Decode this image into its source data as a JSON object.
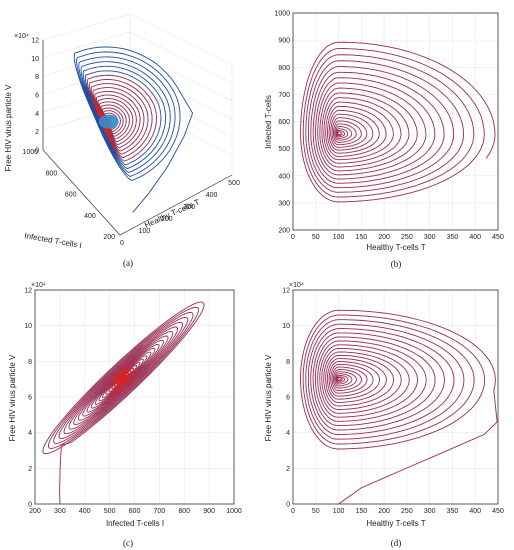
{
  "chart_data": [
    {
      "panel": "a",
      "caption": "(a)",
      "type": "line",
      "projection": "3d",
      "xlabel": "Healthy T-cells T",
      "ylabel": "Infected T-cells I",
      "zlabel": "Free HIV virus particle V",
      "z_exponent": "×10⁴",
      "xticks": [
        "0",
        "100",
        "200",
        "300",
        "400",
        "500"
      ],
      "yticks": [
        "200",
        "400",
        "600",
        "800",
        "1000"
      ],
      "zticks": [
        "0",
        "2",
        "4",
        "6",
        "8",
        "10",
        "12"
      ],
      "xlim": [
        0,
        500
      ],
      "ylim": [
        200,
        1000
      ],
      "zlim": [
        0,
        12
      ],
      "series": [
        {
          "color": "#1f4fa0"
        },
        {
          "color": "#e0201e"
        }
      ],
      "equilibrium": {
        "T": 100,
        "I": 550,
        "V": 7.0
      }
    },
    {
      "panel": "b",
      "caption": "(b)",
      "type": "line",
      "xlabel": "Healthy T-cells T",
      "ylabel": "Infected T-cells",
      "xlim": [
        0,
        450
      ],
      "ylim": [
        200,
        1000
      ],
      "xticks": [
        "0",
        "50",
        "100",
        "150",
        "200",
        "250",
        "300",
        "350",
        "400",
        "450"
      ],
      "yticks": [
        "200",
        "300",
        "400",
        "500",
        "600",
        "700",
        "800",
        "900",
        "1000"
      ],
      "grid": true,
      "center": {
        "x": 100,
        "y": 555
      },
      "outer_extent": {
        "x": [
          12,
          450
        ],
        "y": [
          285,
          905
        ]
      }
    },
    {
      "panel": "c",
      "caption": "(c)",
      "type": "line",
      "xlabel": "Infected T-cells I",
      "ylabel": "Free HIV virus particle V",
      "y_exponent": "×10⁴",
      "xlim": [
        200,
        1000
      ],
      "ylim": [
        0,
        12
      ],
      "xticks": [
        "200",
        "300",
        "400",
        "500",
        "600",
        "700",
        "800",
        "900",
        "1000"
      ],
      "yticks": [
        "0",
        "2",
        "4",
        "6",
        "8",
        "10",
        "12"
      ],
      "grid": true,
      "center": {
        "x": 550,
        "y": 7.0
      },
      "outer_extent": {
        "x": [
          300,
          900
        ],
        "y": [
          3.8,
          11.0
        ]
      },
      "start_point": {
        "x": 300,
        "y": 0
      }
    },
    {
      "panel": "d",
      "caption": "(d)",
      "type": "line",
      "xlabel": "Healthy T-cells T",
      "ylabel": "Free HIV virus particle V",
      "y_exponent": "×10⁴",
      "xlim": [
        0,
        450
      ],
      "ylim": [
        0,
        12
      ],
      "xticks": [
        "0",
        "50",
        "100",
        "150",
        "200",
        "250",
        "300",
        "350",
        "400",
        "450"
      ],
      "yticks": [
        "0",
        "2",
        "4",
        "6",
        "8",
        "10",
        "12"
      ],
      "grid": true,
      "center": {
        "x": 100,
        "y": 7.0
      },
      "outer_extent": {
        "x": [
          12,
          450
        ],
        "y": [
          2.8,
          11.0
        ]
      },
      "start_point": {
        "x": 100,
        "y": 0
      }
    }
  ]
}
